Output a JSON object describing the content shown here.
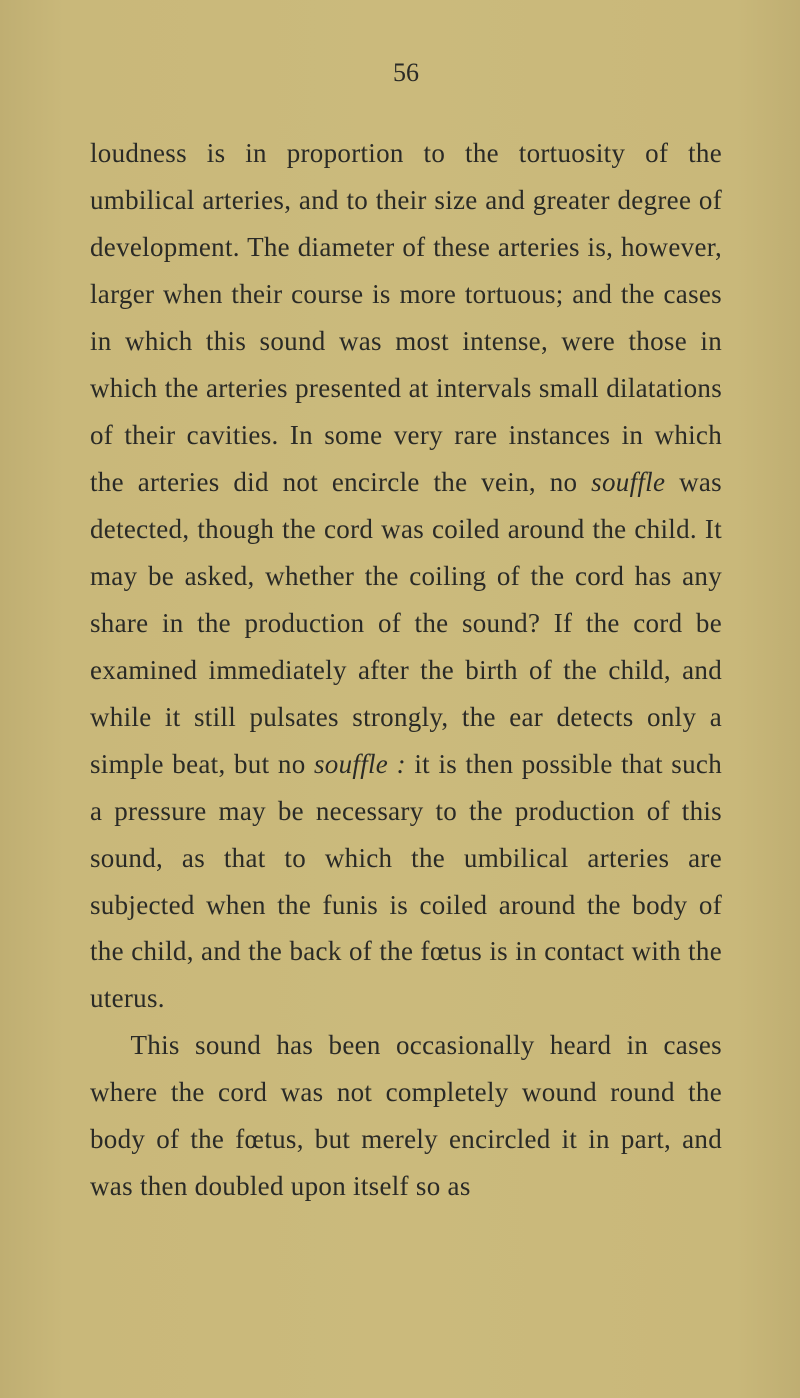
{
  "page": {
    "number": "56",
    "background_color": "#c9b87a",
    "text_color": "#2a2a26",
    "font_family": "Georgia, Times New Roman, serif",
    "body_fontsize": 27,
    "line_height": 1.74,
    "paragraphs": [
      {
        "indent": false,
        "segments": [
          {
            "text": "loudness is in proportion to the tortuosity of the umbilical arteries, and to their size and greater degree of development. The diameter of these arteries is, however, larger when their course is more tortuous; and the cases in which this sound was most intense, were those in which the arteries presented at intervals small dilata­tions of their cavities. In some very rare in­stances in which the arteries did not encircle the vein, no ",
            "italic": false
          },
          {
            "text": "souffle",
            "italic": true
          },
          {
            "text": " was detected, though the cord was coiled around the child. It may be asked, whether the coiling of the cord has any share in the production of the sound? If the cord be examined immediately after the birth of the child, and while it still pulsates strongly, the ear detects only a simple beat, but no ",
            "italic": false
          },
          {
            "text": "souffle :",
            "italic": true
          },
          {
            "text": " it is then possible that such a pressure may be neces­sary to the production of this sound, as that to which the umbilical arteries are subjected when the funis is coiled around the body of the child, and the back of the fœtus is in contact with the uterus.",
            "italic": false
          }
        ]
      },
      {
        "indent": true,
        "segments": [
          {
            "text": "This sound has been occasionally heard in cases where the cord was not completely wound round the body of the fœtus, but merely encircled it in part, and was then doubled upon itself so as",
            "italic": false
          }
        ]
      }
    ]
  }
}
